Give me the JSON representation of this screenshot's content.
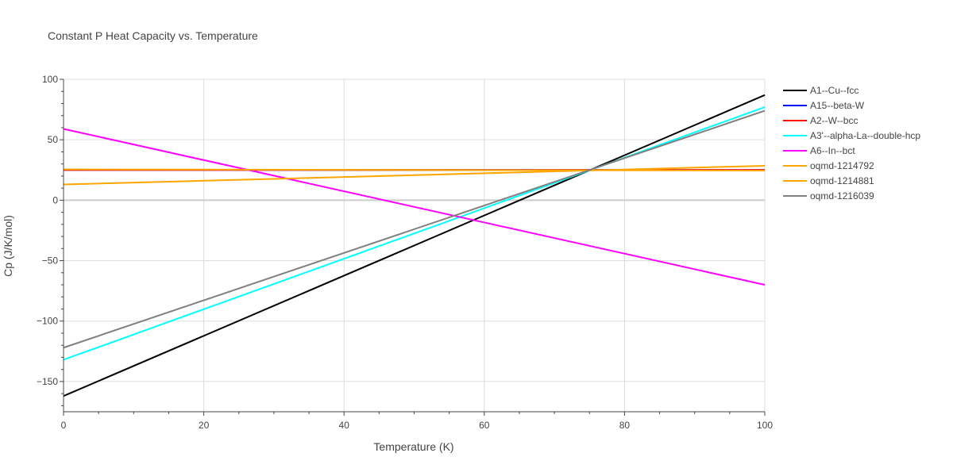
{
  "chart_data": {
    "type": "line",
    "title": "Constant P Heat Capacity vs. Temperature",
    "xlabel": "Temperature (K)",
    "ylabel": "Cp (J/K/mol)",
    "xlim": [
      0,
      100
    ],
    "ylim": [
      -175,
      100
    ],
    "xticks": [
      0,
      20,
      40,
      60,
      80,
      100
    ],
    "xtick_labels": [
      "0",
      "20",
      "40",
      "60",
      "80",
      "100"
    ],
    "yticks": [
      -150,
      -100,
      -50,
      0,
      50,
      100
    ],
    "ytick_labels": [
      "−150",
      "−100",
      "−50",
      "0",
      "50",
      "100"
    ],
    "grid": true,
    "legend_position": "right",
    "series": [
      {
        "name": "A1--Cu--fcc",
        "color": "#000000",
        "x": [
          0,
          100
        ],
        "y": [
          -162,
          87
        ]
      },
      {
        "name": "A15--beta-W",
        "color": "#0000ff",
        "x": [
          0,
          100
        ],
        "y": [
          25,
          25
        ]
      },
      {
        "name": "A2--W--bcc",
        "color": "#ff0000",
        "x": [
          0,
          100
        ],
        "y": [
          25,
          25
        ]
      },
      {
        "name": "A3'--alpha-La--double-hcp",
        "color": "#00ffff",
        "x": [
          0,
          100
        ],
        "y": [
          -132,
          77
        ]
      },
      {
        "name": "A6--In--bct",
        "color": "#ff00ff",
        "x": [
          0,
          100
        ],
        "y": [
          59,
          -70
        ]
      },
      {
        "name": "oqmd-1214792",
        "color": "#ffa500",
        "x": [
          0,
          100
        ],
        "y": [
          13,
          28.5
        ]
      },
      {
        "name": "oqmd-1214881",
        "color": "#ffa500",
        "x": [
          0,
          100
        ],
        "y": [
          25.5,
          24.5
        ]
      },
      {
        "name": "oqmd-1216039",
        "color": "#808080",
        "x": [
          0,
          100
        ],
        "y": [
          -122,
          74
        ]
      }
    ]
  }
}
